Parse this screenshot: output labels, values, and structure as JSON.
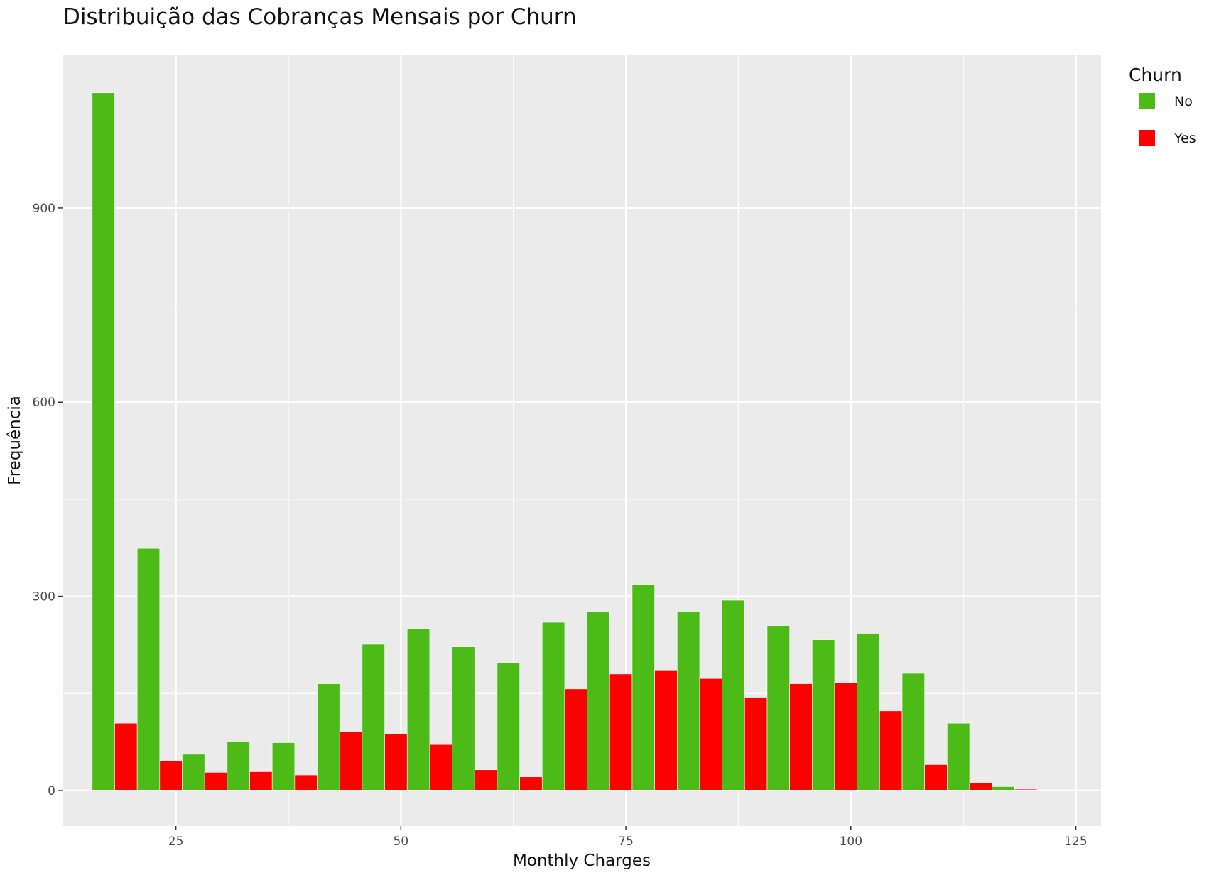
{
  "chart_data": {
    "type": "bar",
    "title": "Distribuição das Cobranças Mensais por Churn",
    "xlabel": "Monthly Charges",
    "ylabel": "Frequência",
    "bin_centers": [
      18.2,
      23.2,
      28.2,
      33.2,
      38.2,
      43.2,
      48.2,
      53.2,
      58.2,
      63.2,
      68.2,
      73.2,
      78.2,
      83.2,
      88.2,
      93.2,
      98.2,
      103.2,
      108.2,
      113.2,
      118.2
    ],
    "bin_width": 5,
    "series": [
      {
        "name": "No",
        "color": "#4cbb17",
        "values": [
          1078,
          374,
          56,
          75,
          74,
          165,
          226,
          250,
          222,
          197,
          260,
          276,
          318,
          277,
          294,
          254,
          233,
          243,
          181,
          104,
          6
        ]
      },
      {
        "name": "Yes",
        "color": "#ff0000",
        "values": [
          104,
          46,
          28,
          29,
          24,
          91,
          87,
          71,
          32,
          21,
          157,
          180,
          185,
          173,
          143,
          165,
          167,
          123,
          40,
          12,
          2
        ]
      }
    ],
    "xlim": [
      12.4,
      127.8
    ],
    "ylim": [
      -55,
      1137
    ],
    "x_ticks": [
      25,
      50,
      75,
      100,
      125
    ],
    "x_tick_labels": [
      "25",
      "50",
      "75",
      "100",
      "125"
    ],
    "y_ticks": [
      0,
      300,
      600,
      900
    ],
    "y_tick_labels": [
      "0",
      "300",
      "600",
      "900"
    ],
    "grid": true,
    "legend": {
      "title": "Churn",
      "position": "right",
      "entries": [
        "No",
        "Yes"
      ]
    }
  }
}
